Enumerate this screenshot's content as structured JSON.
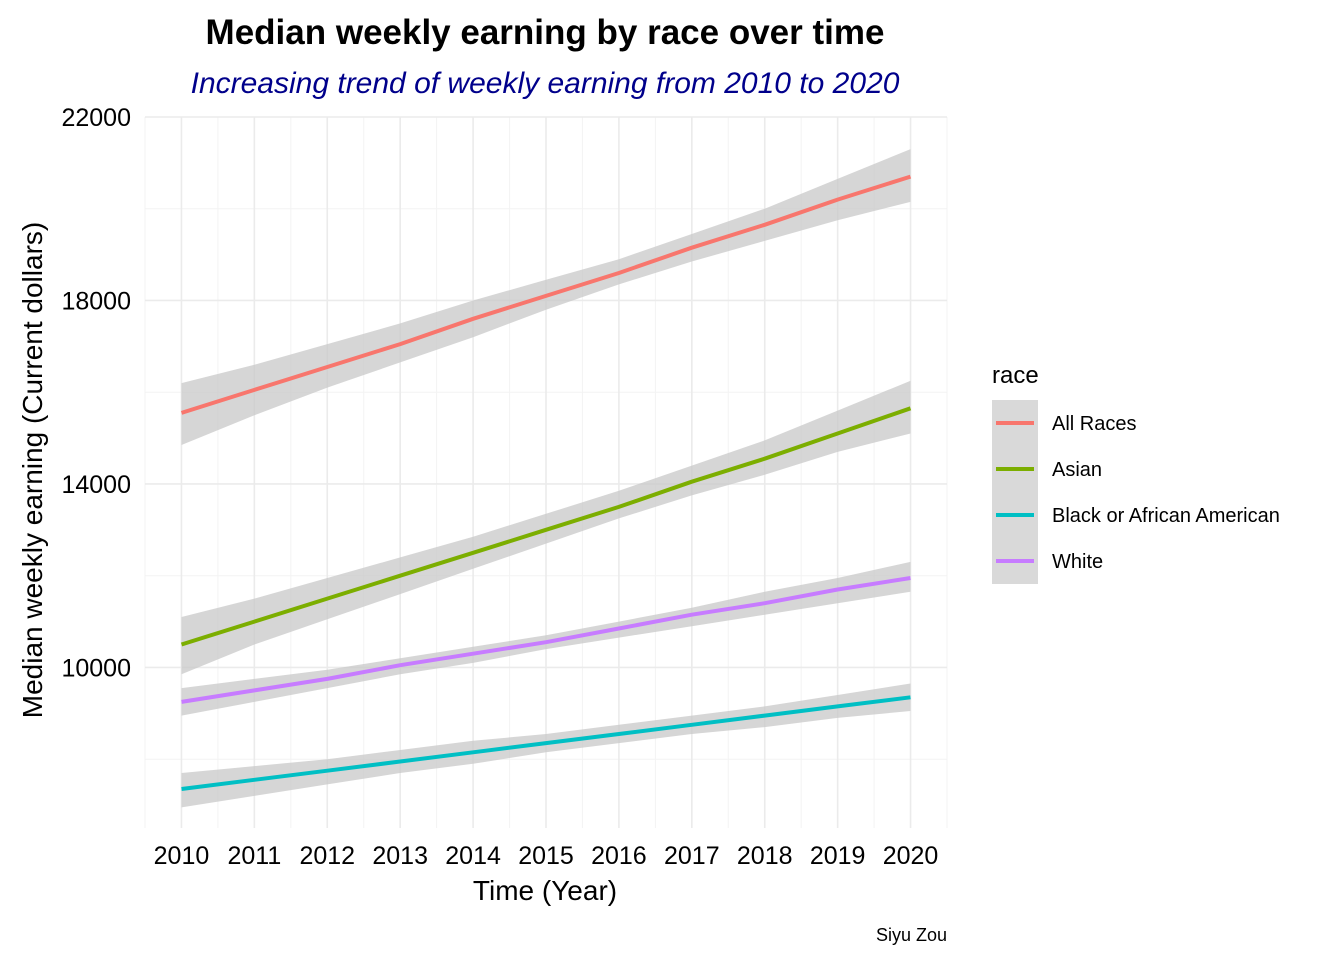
{
  "colors": {
    "subtitle": "#00008B",
    "grid_major": "#EBEBEB",
    "grid_minor": "#F3F3F3",
    "ribbon": "#C8C8C8",
    "legend_key_bg": "#D9D9D9"
  },
  "chart_data": {
    "type": "line",
    "title": "Median weekly earning by race over time",
    "subtitle": "Increasing trend of weekly earning from 2010 to 2020",
    "xlabel": "Time (Year)",
    "ylabel": "Median weekly earning (Current dollars)",
    "caption": "Siyu Zou",
    "xlim": [
      2009.5,
      2020.5
    ],
    "ylim": [
      6500,
      22000
    ],
    "x_ticks": [
      2010,
      2011,
      2012,
      2013,
      2014,
      2015,
      2016,
      2017,
      2018,
      2019,
      2020
    ],
    "x_tick_labels": [
      "2010",
      "2011",
      "2012",
      "2013",
      "2014",
      "2015",
      "2016",
      "2017",
      "2018",
      "2019",
      "2020"
    ],
    "y_ticks": [
      10000,
      14000,
      18000,
      22000
    ],
    "y_tick_labels": [
      "10000",
      "14000",
      "18000",
      "22000"
    ],
    "grid": true,
    "legend": {
      "title": "race",
      "position": "right"
    },
    "x": [
      2010,
      2011,
      2012,
      2013,
      2014,
      2015,
      2016,
      2017,
      2018,
      2019,
      2020
    ],
    "series": [
      {
        "name": "All Races",
        "color": "#F8766D",
        "values": [
          15550,
          16050,
          16550,
          17050,
          17600,
          18100,
          18600,
          19150,
          19650,
          20200,
          20700
        ],
        "lower": [
          14850,
          15500,
          16100,
          16650,
          17200,
          17800,
          18350,
          18850,
          19300,
          19750,
          20150
        ],
        "upper": [
          16200,
          16600,
          17050,
          17500,
          18000,
          18450,
          18900,
          19450,
          20000,
          20650,
          21300
        ]
      },
      {
        "name": "Asian",
        "color": "#7CAE00",
        "values": [
          10500,
          11000,
          11500,
          12000,
          12500,
          13000,
          13500,
          14050,
          14550,
          15100,
          15650
        ],
        "lower": [
          9850,
          10500,
          11050,
          11600,
          12150,
          12700,
          13250,
          13750,
          14200,
          14700,
          15100
        ],
        "upper": [
          11100,
          11500,
          11950,
          12400,
          12850,
          13350,
          13850,
          14400,
          14950,
          15600,
          16250
        ]
      },
      {
        "name": "Black or African American",
        "color": "#00BFC4",
        "values": [
          7350,
          7550,
          7750,
          7950,
          8150,
          8350,
          8550,
          8750,
          8950,
          9150,
          9350
        ],
        "lower": [
          6950,
          7200,
          7450,
          7700,
          7900,
          8150,
          8350,
          8550,
          8700,
          8900,
          9050
        ],
        "upper": [
          7700,
          7850,
          8000,
          8200,
          8400,
          8550,
          8750,
          8950,
          9150,
          9400,
          9650
        ]
      },
      {
        "name": "White",
        "color": "#C77CFF",
        "values": [
          9250,
          9500,
          9750,
          10050,
          10300,
          10550,
          10850,
          11150,
          11400,
          11700,
          11950
        ],
        "lower": [
          8950,
          9250,
          9550,
          9850,
          10100,
          10400,
          10650,
          10900,
          11150,
          11400,
          11650
        ],
        "upper": [
          9550,
          9750,
          9950,
          10200,
          10450,
          10700,
          11000,
          11300,
          11650,
          11950,
          12300
        ]
      }
    ]
  }
}
